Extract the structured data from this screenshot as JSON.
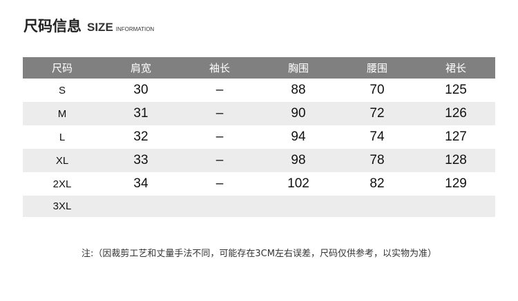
{
  "title": {
    "cn": "尺码信息",
    "en": "SIZE",
    "sub": "INFORMATION"
  },
  "table": {
    "headers": [
      "尺码",
      "肩宽",
      "袖长",
      "胸围",
      "腰围",
      "裙长"
    ],
    "rows": [
      [
        "S",
        "30",
        "–",
        "88",
        "70",
        "125"
      ],
      [
        "M",
        "31",
        "–",
        "90",
        "72",
        "126"
      ],
      [
        "L",
        "32",
        "–",
        "94",
        "74",
        "127"
      ],
      [
        "XL",
        "33",
        "–",
        "98",
        "78",
        "128"
      ],
      [
        "2XL",
        "34",
        "–",
        "102",
        "82",
        "129"
      ],
      [
        "3XL",
        "",
        "",
        "",
        "",
        ""
      ]
    ]
  },
  "note": "注:（因裁剪工艺和丈量手法不同，可能存在3CM左右误差，尺码仅供参考，以实物为准）",
  "colors": {
    "header_bg": "#808080",
    "alt_row_bg": "#ececec"
  }
}
